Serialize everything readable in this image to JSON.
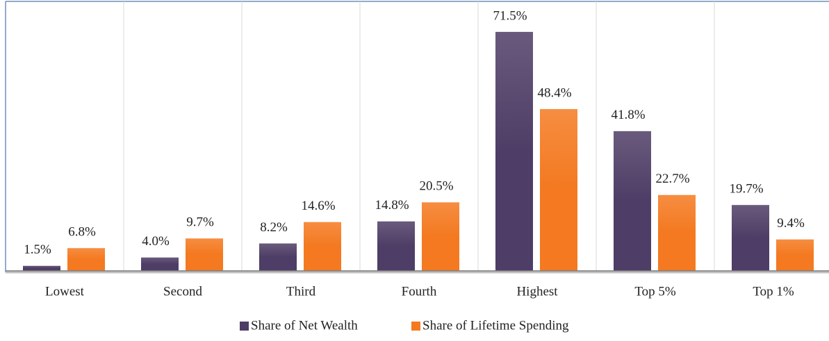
{
  "chart_data": {
    "type": "bar",
    "categories": [
      "Lowest",
      "Second",
      "Third",
      "Fourth",
      "Highest",
      "Top 5%",
      "Top 1%"
    ],
    "series": [
      {
        "name": "Share of Net Wealth",
        "color": "#4e3d66",
        "values": [
          1.5,
          4.0,
          8.2,
          14.8,
          71.5,
          41.8,
          19.7
        ],
        "value_labels": [
          "1.5%",
          "4.0%",
          "8.2%",
          "14.8%",
          "71.5%",
          "41.8%",
          "19.7%"
        ]
      },
      {
        "name": "Share of Lifetime Spending",
        "color": "#f47920",
        "values": [
          6.8,
          9.7,
          14.6,
          20.5,
          48.4,
          22.7,
          9.4
        ],
        "value_labels": [
          "6.8%",
          "9.7%",
          "14.6%",
          "20.5%",
          "48.4%",
          "22.7%",
          "9.4%"
        ]
      }
    ],
    "ylim": [
      0,
      80
    ],
    "legend": "bottom"
  }
}
